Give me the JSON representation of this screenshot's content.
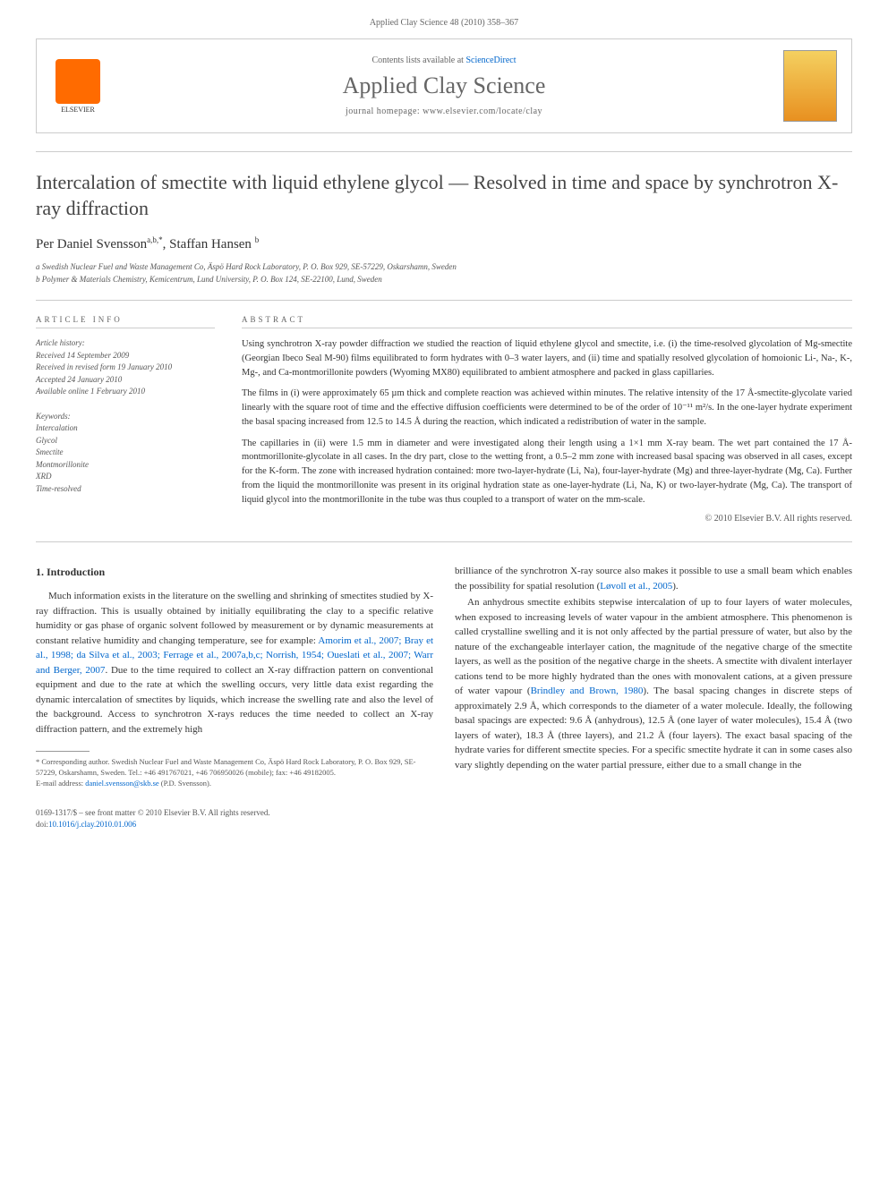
{
  "header": {
    "citation": "Applied Clay Science 48 (2010) 358–367"
  },
  "banner": {
    "elsevier_label": "ELSEVIER",
    "contents_prefix": "Contents lists available at ",
    "contents_link": "ScienceDirect",
    "journal_name": "Applied Clay Science",
    "homepage_prefix": "journal homepage: ",
    "homepage_url": "www.elsevier.com/locate/clay"
  },
  "article": {
    "title": "Intercalation of smectite with liquid ethylene glycol — Resolved in time and space by synchrotron X-ray diffraction",
    "authors_html": "Per Daniel Svensson",
    "author1_sup": "a,b,*",
    "author2": ", Staffan Hansen ",
    "author2_sup": "b",
    "affiliations": {
      "a": "a Swedish Nuclear Fuel and Waste Management Co, Äspö Hard Rock Laboratory, P. O. Box 929, SE-57229, Oskarshamn, Sweden",
      "b": "b Polymer & Materials Chemistry, Kemicentrum, Lund University, P. O. Box 124, SE-22100, Lund, Sweden"
    }
  },
  "info": {
    "section_label": "ARTICLE INFO",
    "history_label": "Article history:",
    "received": "Received 14 September 2009",
    "revised": "Received in revised form 19 January 2010",
    "accepted": "Accepted 24 January 2010",
    "online": "Available online 1 February 2010",
    "keywords_label": "Keywords:",
    "keywords": [
      "Intercalation",
      "Glycol",
      "Smectite",
      "Montmorillonite",
      "XRD",
      "Time-resolved"
    ]
  },
  "abstract": {
    "section_label": "ABSTRACT",
    "p1": "Using synchrotron X-ray powder diffraction we studied the reaction of liquid ethylene glycol and smectite, i.e. (i) the time-resolved glycolation of Mg-smectite (Georgian Ibeco Seal M-90) films equilibrated to form hydrates with 0–3 water layers, and (ii) time and spatially resolved glycolation of homoionic Li-, Na-, K-, Mg-, and Ca-montmorillonite powders (Wyoming MX80) equilibrated to ambient atmosphere and packed in glass capillaries.",
    "p2": "The films in (i) were approximately 65 µm thick and complete reaction was achieved within minutes. The relative intensity of the 17 Å-smectite-glycolate varied linearly with the square root of time and the effective diffusion coefficients were determined to be of the order of 10⁻¹¹ m²/s. In the one-layer hydrate experiment the basal spacing increased from 12.5 to 14.5 Å during the reaction, which indicated a redistribution of water in the sample.",
    "p3": "The capillaries in (ii) were 1.5 mm in diameter and were investigated along their length using a 1×1 mm X-ray beam. The wet part contained the 17 Å-montmorillonite-glycolate in all cases. In the dry part, close to the wetting front, a 0.5–2 mm zone with increased basal spacing was observed in all cases, except for the K-form. The zone with increased hydration contained: more two-layer-hydrate (Li, Na), four-layer-hydrate (Mg) and three-layer-hydrate (Mg, Ca). Further from the liquid the montmorillonite was present in its original hydration state as one-layer-hydrate (Li, Na, K) or two-layer-hydrate (Mg, Ca). The transport of liquid glycol into the montmorillonite in the tube was thus coupled to a transport of water on the mm-scale.",
    "copyright": "© 2010 Elsevier B.V. All rights reserved."
  },
  "body": {
    "heading": "1. Introduction",
    "col1_p1a": "Much information exists in the literature on the swelling and shrinking of smectites studied by X-ray diffraction. This is usually obtained by initially equilibrating the clay to a specific relative humidity or gas phase of organic solvent followed by measurement or by dynamic measurements at constant relative humidity and changing temperature, see for example: ",
    "col1_refs": "Amorim et al., 2007; Bray et al., 1998; da Silva et al., 2003; Ferrage et al., 2007a,b,c; Norrish, 1954; Oueslati et al., 2007; Warr and Berger, 2007",
    "col1_p1b": ". Due to the time required to collect an X-ray diffraction pattern on conventional equipment and due to the rate at which the swelling occurs, very little data exist regarding the dynamic intercalation of smectites by liquids, which increase the swelling rate and also the level of the background. Access to synchrotron X-rays reduces the time needed to collect an X-ray diffraction pattern, and the extremely high",
    "col2_p1a": "brilliance of the synchrotron X-ray source also makes it possible to use a small beam which enables the possibility for spatial resolution (",
    "col2_ref1": "Løvoll et al., 2005",
    "col2_p1b": ").",
    "col2_p2a": "An anhydrous smectite exhibits stepwise intercalation of up to four layers of water molecules, when exposed to increasing levels of water vapour in the ambient atmosphere. This phenomenon is called crystalline swelling and it is not only affected by the partial pressure of water, but also by the nature of the exchangeable interlayer cation, the magnitude of the negative charge of the smectite layers, as well as the position of the negative charge in the sheets. A smectite with divalent interlayer cations tend to be more highly hydrated than the ones with monovalent cations, at a given pressure of water vapour (",
    "col2_ref2": "Brindley and Brown, 1980",
    "col2_p2b": "). The basal spacing changes in discrete steps of approximately 2.9 Å, which corresponds to the diameter of a water molecule. Ideally, the following basal spacings are expected: 9.6 Å (anhydrous), 12.5 Å (one layer of water molecules), 15.4 Å (two layers of water), 18.3 Å (three layers), and 21.2 Å (four layers). The exact basal spacing of the hydrate varies for different smectite species. For a specific smectite hydrate it can in some cases also vary slightly depending on the water partial pressure, either due to a small change in the"
  },
  "footnote": {
    "corr": "* Corresponding author. Swedish Nuclear Fuel and Waste Management Co, Äspö Hard Rock Laboratory, P. O. Box 929, SE-57229, Oskarshamn, Sweden. Tel.: +46 491767021, +46 706950026 (mobile); fax: +46 49182005.",
    "email_label": "E-mail address: ",
    "email": "daniel.svensson@skb.se",
    "email_suffix": " (P.D. Svensson)."
  },
  "footer": {
    "line1": "0169-1317/$ – see front matter © 2010 Elsevier B.V. All rights reserved.",
    "doi_prefix": "doi:",
    "doi": "10.1016/j.clay.2010.01.006"
  },
  "colors": {
    "link": "#0066cc",
    "text": "#333333",
    "muted": "#666666",
    "border": "#cccccc",
    "elsevier_orange": "#ff6b00"
  }
}
